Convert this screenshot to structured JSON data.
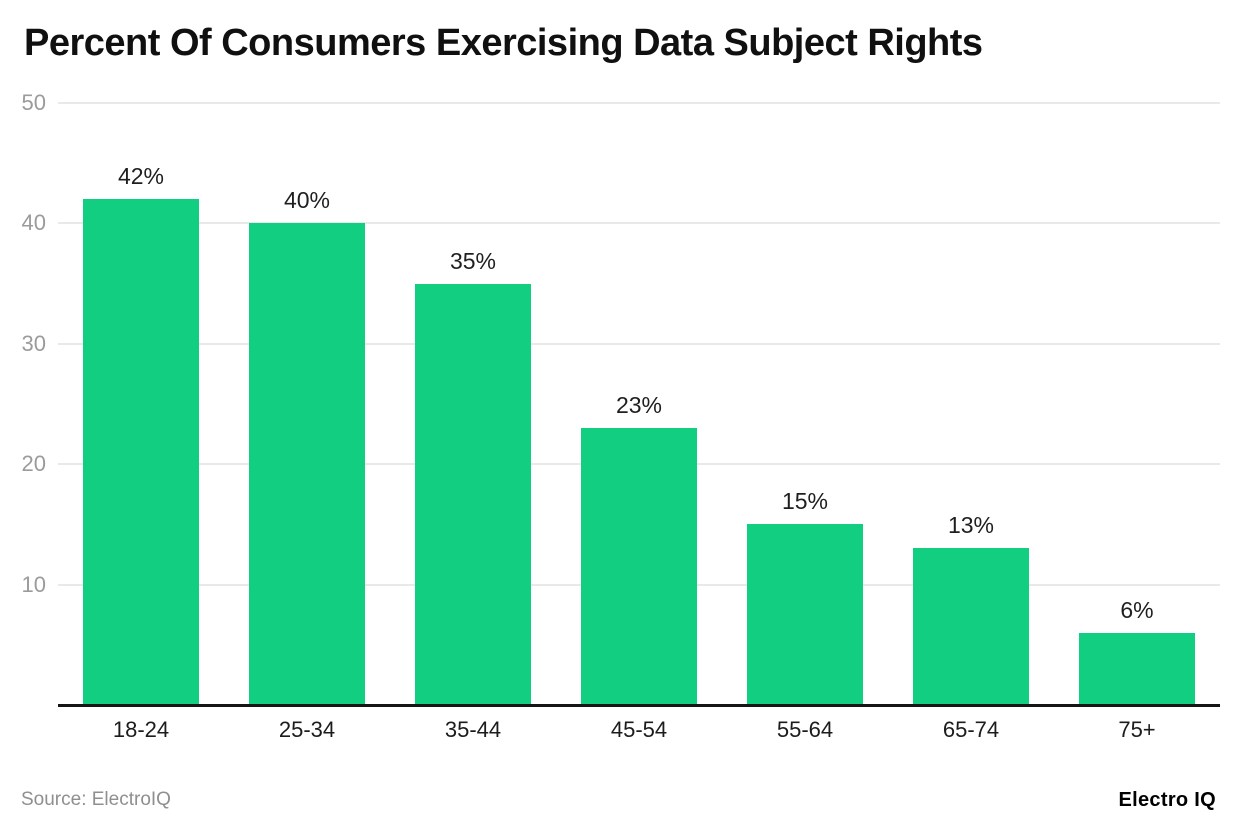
{
  "title": "Percent Of Consumers Exercising Data Subject Rights",
  "footer": {
    "source": "Source: ElectroIQ",
    "brand": "Electro IQ"
  },
  "colors": {
    "bar": "#11ce80",
    "grid": "#e9e9e9",
    "axis": "#151515",
    "y_tick_label": "#9b9b9b",
    "x_tick_label": "#1c1c1c",
    "value_label": "#1f1f1f",
    "source_text": "#8f8f8f"
  },
  "chart_data": {
    "type": "bar",
    "title": "Percent Of Consumers Exercising Data Subject Rights",
    "categories": [
      "18-24",
      "25-34",
      "35-44",
      "45-54",
      "55-64",
      "65-74",
      "75+"
    ],
    "values": [
      42,
      40,
      35,
      23,
      15,
      13,
      6
    ],
    "value_labels": [
      "42%",
      "40%",
      "35%",
      "23%",
      "15%",
      "13%",
      "6%"
    ],
    "xlabel": "",
    "ylabel": "",
    "ylim": [
      0,
      50
    ],
    "yticks": [
      50,
      40,
      30,
      20,
      10
    ],
    "grid": true,
    "legend": false,
    "bar_color": "#11ce80"
  }
}
